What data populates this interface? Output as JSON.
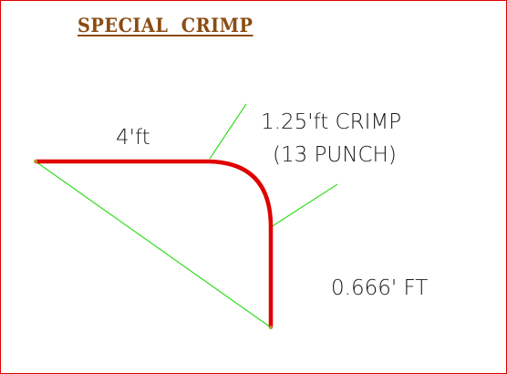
{
  "title": "SPECIAL  CRIMP",
  "labels": {
    "top_length": "4'ft",
    "crimp_line1": "1.25'ft CRIMP",
    "crimp_line2": "(13 PUNCH)",
    "side_length": "0.666' FT"
  },
  "colors": {
    "border": "#e00000",
    "title": "#8a4b12",
    "profile": "#e00000",
    "guide": "#33dd22",
    "vertex": "#b59a2a",
    "text": "#1a1a1a"
  }
}
